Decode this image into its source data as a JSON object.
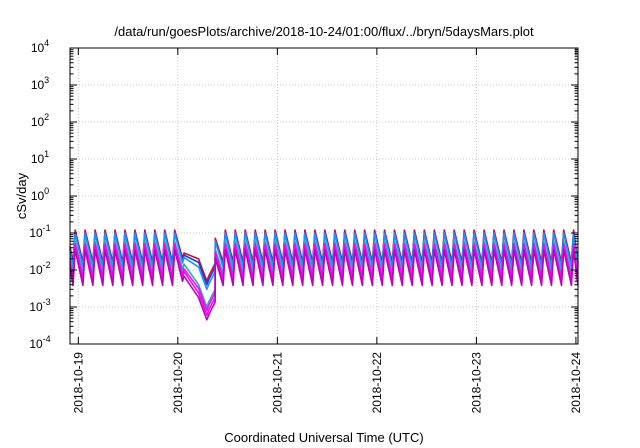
{
  "chart_data": {
    "type": "line",
    "title": "/data/run/goesPlots/archive/2018-10-24/01:00/flux/../bryn/5daysMars.plot",
    "xlabel": "Coordinated Universal Time (UTC)",
    "ylabel": "cSv/day",
    "y_scale": "log",
    "ylim": [
      0.0001,
      10000
    ],
    "xlim": [
      "2018-10-18T22:00",
      "2018-10-24T00:30"
    ],
    "grid": true,
    "legend": "none",
    "x_tick_labels": [
      "2018-10-19",
      "2018-10-20",
      "2018-10-21",
      "2018-10-22",
      "2018-10-23",
      "2018-10-24"
    ],
    "y_tick_labels": [
      {
        "base": "10",
        "exp": "-4"
      },
      {
        "base": "10",
        "exp": "-3"
      },
      {
        "base": "10",
        "exp": "-2"
      },
      {
        "base": "10",
        "exp": "-1"
      },
      {
        "base": "10",
        "exp": "0"
      },
      {
        "base": "10",
        "exp": "1"
      },
      {
        "base": "10",
        "exp": "2"
      },
      {
        "base": "10",
        "exp": "3"
      },
      {
        "base": "10",
        "exp": "4"
      }
    ],
    "series_colors": [
      "#c8102e",
      "#1a3fd6",
      "#1e90ff",
      "#20b2aa",
      "#ff00ff",
      "#e010e0",
      "#c000c0"
    ],
    "cycle_hours": 2.4,
    "peaks": [
      0.12,
      0.1,
      0.1,
      0.06,
      0.05,
      0.04,
      0.035
    ],
    "troughs": [
      0.016,
      0.014,
      0.012,
      0.008,
      0.006,
      0.005,
      0.0038
    ],
    "dip": {
      "start": "2018-10-20T01:30",
      "bottom": "2018-10-20T07:00",
      "recover": "2018-10-20T09:00",
      "min_values": [
        0.005,
        0.004,
        0.003,
        0.001,
        0.0008,
        0.0006,
        0.00045
      ]
    }
  }
}
